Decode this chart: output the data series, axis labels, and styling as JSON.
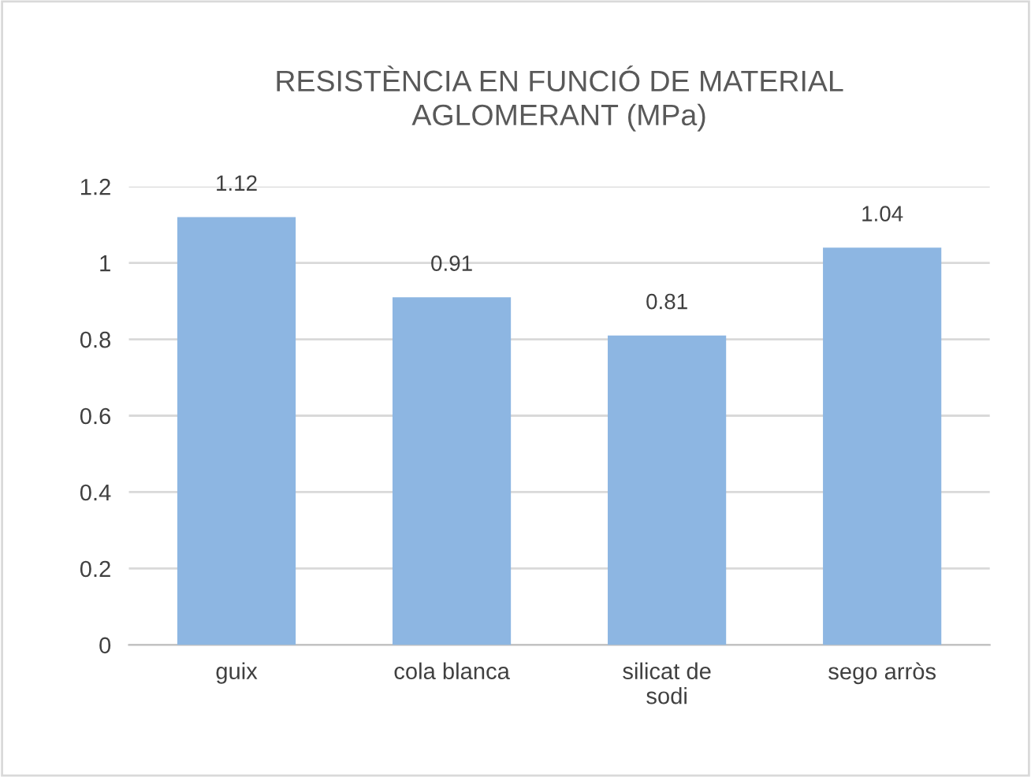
{
  "chart_data": {
    "type": "bar",
    "title": "RESISTÈNCIA EN FUNCIÓ DE MATERIAL AGLOMERANT (MPa)",
    "categories": [
      "guix",
      "cola blanca",
      "silicat de sodi",
      "sego arròs"
    ],
    "values": [
      1.12,
      0.91,
      0.81,
      1.04
    ],
    "color": "#8db6e2",
    "ylim": [
      0,
      1.2
    ],
    "yticks": [
      0,
      0.2,
      0.4,
      0.6,
      0.8,
      1,
      1.2
    ],
    "grid": "y",
    "data_labels": true
  }
}
